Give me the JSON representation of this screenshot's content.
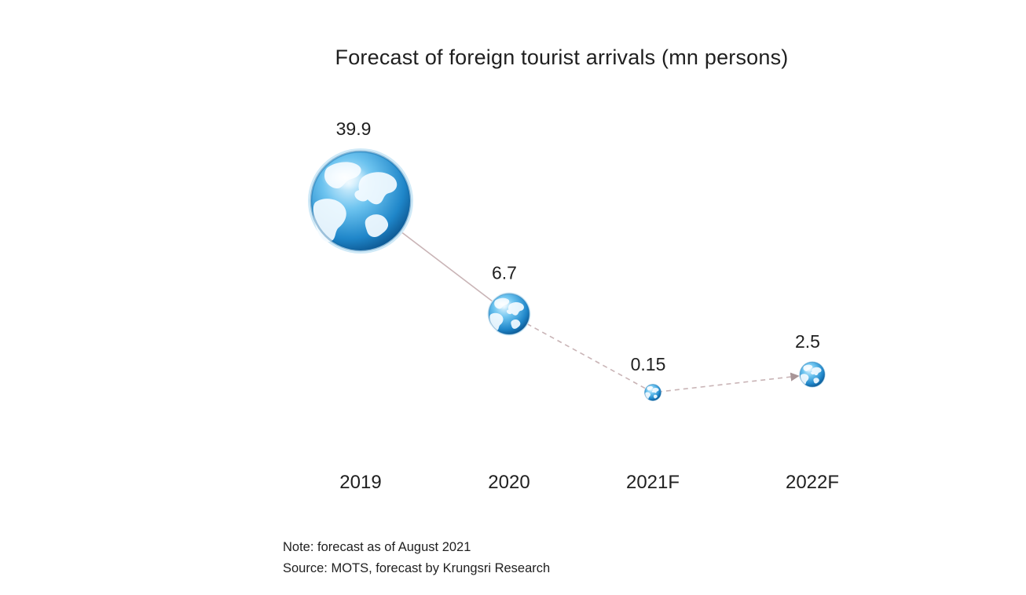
{
  "chart_data": {
    "type": "scatter",
    "title": "Forecast of foreign tourist arrivals (mn persons)",
    "xlabel": "",
    "ylabel": "",
    "categories": [
      "2019",
      "2020",
      "2021F",
      "2022F"
    ],
    "values": [
      39.9,
      6.7,
      0.15,
      2.5
    ],
    "data_labels": [
      "39.9",
      "6.7",
      "0.15",
      "2.5"
    ],
    "marker": "globe-icon",
    "marker_size_encodes_value": true,
    "connectors": [
      {
        "from": "2019",
        "to": "2020",
        "style": "solid"
      },
      {
        "from": "2020",
        "to": "2021F",
        "style": "dashed"
      },
      {
        "from": "2021F",
        "to": "2022F",
        "style": "dashed-arrow"
      }
    ],
    "grid": false,
    "axes_visible": false
  },
  "notes": {
    "note": "Note: forecast as of August 2021",
    "source": "Source: MOTS, forecast by Krungsri Research"
  },
  "colors": {
    "connector": "#c9b4b6",
    "ocean_light": "#bfe6fb",
    "ocean_mid": "#3ba6dc",
    "ocean_dark": "#0b5e9c",
    "land": "#f4fbff"
  }
}
